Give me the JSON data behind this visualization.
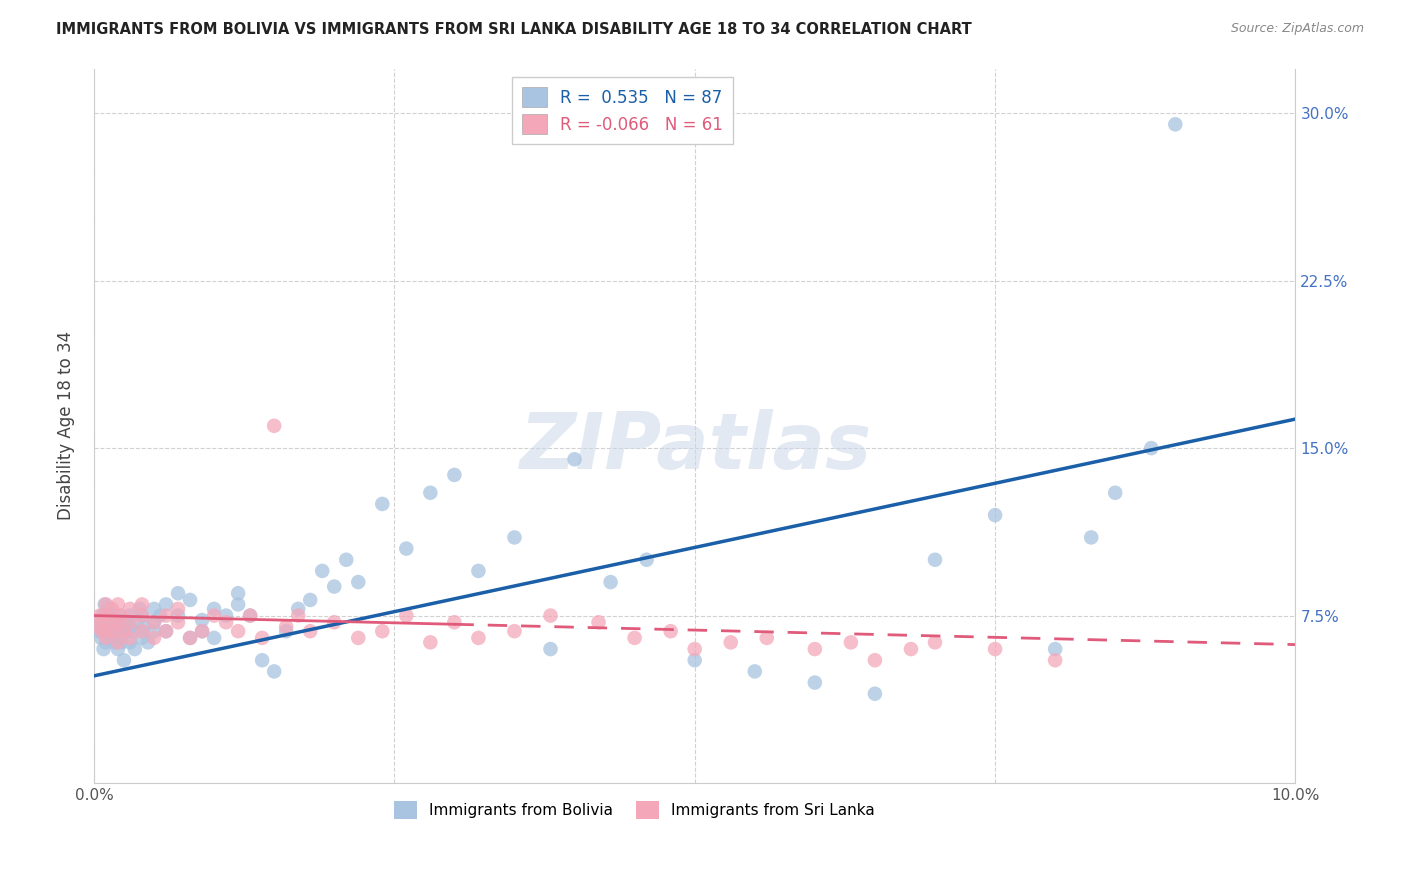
{
  "title": "IMMIGRANTS FROM BOLIVIA VS IMMIGRANTS FROM SRI LANKA DISABILITY AGE 18 TO 34 CORRELATION CHART",
  "source": "Source: ZipAtlas.com",
  "ylabel": "Disability Age 18 to 34",
  "xlim": [
    0.0,
    0.1
  ],
  "ylim": [
    0.0,
    0.32
  ],
  "xtick_positions": [
    0.0,
    0.025,
    0.05,
    0.075,
    0.1
  ],
  "xtick_labels": [
    "0.0%",
    "",
    "",
    "",
    "10.0%"
  ],
  "ytick_positions": [
    0.0,
    0.075,
    0.15,
    0.225,
    0.3
  ],
  "ytick_labels_right": [
    "",
    "7.5%",
    "15.0%",
    "22.5%",
    "30.0%"
  ],
  "bolivia_color": "#a8c4e0",
  "sri_lanka_color": "#f4a7b9",
  "bolivia_line_color": "#1a5fa8",
  "sri_lanka_line_color": "#e05a7a",
  "bolivia_R": 0.535,
  "bolivia_N": 87,
  "sri_lanka_R": -0.066,
  "sri_lanka_N": 61,
  "legend_label_bolivia": "Immigrants from Bolivia",
  "legend_label_sri_lanka": "Immigrants from Sri Lanka",
  "watermark": "ZIPatlas",
  "bolivia_line_x0": 0.0,
  "bolivia_line_y0": 0.048,
  "bolivia_line_x1": 0.1,
  "bolivia_line_y1": 0.163,
  "sri_lanka_line_x0": 0.0,
  "sri_lanka_line_y0": 0.075,
  "sri_lanka_line_x1": 0.1,
  "sri_lanka_line_y1": 0.062,
  "bolivia_pts_x": [
    0.0003,
    0.0004,
    0.0005,
    0.0006,
    0.0007,
    0.0008,
    0.0009,
    0.001,
    0.001,
    0.001,
    0.0012,
    0.0013,
    0.0014,
    0.0015,
    0.0016,
    0.0017,
    0.0018,
    0.0019,
    0.002,
    0.002,
    0.002,
    0.0022,
    0.0023,
    0.0024,
    0.0025,
    0.0026,
    0.0027,
    0.003,
    0.003,
    0.003,
    0.0032,
    0.0034,
    0.0036,
    0.0038,
    0.004,
    0.004,
    0.004,
    0.0042,
    0.0045,
    0.005,
    0.005,
    0.005,
    0.0055,
    0.006,
    0.006,
    0.007,
    0.007,
    0.008,
    0.008,
    0.009,
    0.009,
    0.01,
    0.01,
    0.011,
    0.012,
    0.012,
    0.013,
    0.014,
    0.015,
    0.016,
    0.017,
    0.018,
    0.019,
    0.02,
    0.021,
    0.022,
    0.024,
    0.026,
    0.028,
    0.03,
    0.032,
    0.035,
    0.038,
    0.04,
    0.043,
    0.046,
    0.05,
    0.055,
    0.06,
    0.065,
    0.07,
    0.075,
    0.08,
    0.083,
    0.085,
    0.088,
    0.09
  ],
  "bolivia_pts_y": [
    0.072,
    0.068,
    0.07,
    0.065,
    0.075,
    0.06,
    0.08,
    0.068,
    0.073,
    0.063,
    0.078,
    0.065,
    0.07,
    0.068,
    0.075,
    0.063,
    0.072,
    0.068,
    0.075,
    0.06,
    0.065,
    0.07,
    0.063,
    0.068,
    0.055,
    0.073,
    0.068,
    0.063,
    0.07,
    0.075,
    0.068,
    0.06,
    0.072,
    0.078,
    0.065,
    0.068,
    0.075,
    0.07,
    0.063,
    0.068,
    0.072,
    0.078,
    0.075,
    0.068,
    0.08,
    0.085,
    0.075,
    0.082,
    0.065,
    0.068,
    0.073,
    0.078,
    0.065,
    0.075,
    0.08,
    0.085,
    0.075,
    0.055,
    0.05,
    0.068,
    0.078,
    0.082,
    0.095,
    0.088,
    0.1,
    0.09,
    0.125,
    0.105,
    0.13,
    0.138,
    0.095,
    0.11,
    0.06,
    0.145,
    0.09,
    0.1,
    0.055,
    0.05,
    0.045,
    0.04,
    0.1,
    0.12,
    0.06,
    0.11,
    0.13,
    0.15,
    0.295
  ],
  "sri_lanka_pts_x": [
    0.0003,
    0.0005,
    0.0007,
    0.0008,
    0.001,
    0.001,
    0.001,
    0.0012,
    0.0015,
    0.0016,
    0.0018,
    0.002,
    0.002,
    0.002,
    0.0022,
    0.0025,
    0.003,
    0.003,
    0.003,
    0.004,
    0.004,
    0.004,
    0.005,
    0.005,
    0.006,
    0.006,
    0.007,
    0.007,
    0.008,
    0.009,
    0.01,
    0.011,
    0.012,
    0.013,
    0.014,
    0.015,
    0.016,
    0.017,
    0.018,
    0.02,
    0.022,
    0.024,
    0.026,
    0.028,
    0.03,
    0.032,
    0.035,
    0.038,
    0.042,
    0.045,
    0.048,
    0.05,
    0.053,
    0.056,
    0.06,
    0.063,
    0.065,
    0.068,
    0.07,
    0.075,
    0.08
  ],
  "sri_lanka_pts_y": [
    0.07,
    0.075,
    0.068,
    0.072,
    0.08,
    0.065,
    0.075,
    0.068,
    0.078,
    0.073,
    0.068,
    0.072,
    0.08,
    0.063,
    0.075,
    0.068,
    0.078,
    0.065,
    0.072,
    0.068,
    0.075,
    0.08,
    0.072,
    0.065,
    0.075,
    0.068,
    0.072,
    0.078,
    0.065,
    0.068,
    0.075,
    0.072,
    0.068,
    0.075,
    0.065,
    0.16,
    0.07,
    0.075,
    0.068,
    0.072,
    0.065,
    0.068,
    0.075,
    0.063,
    0.072,
    0.065,
    0.068,
    0.075,
    0.072,
    0.065,
    0.068,
    0.06,
    0.063,
    0.065,
    0.06,
    0.063,
    0.055,
    0.06,
    0.063,
    0.06,
    0.055
  ]
}
